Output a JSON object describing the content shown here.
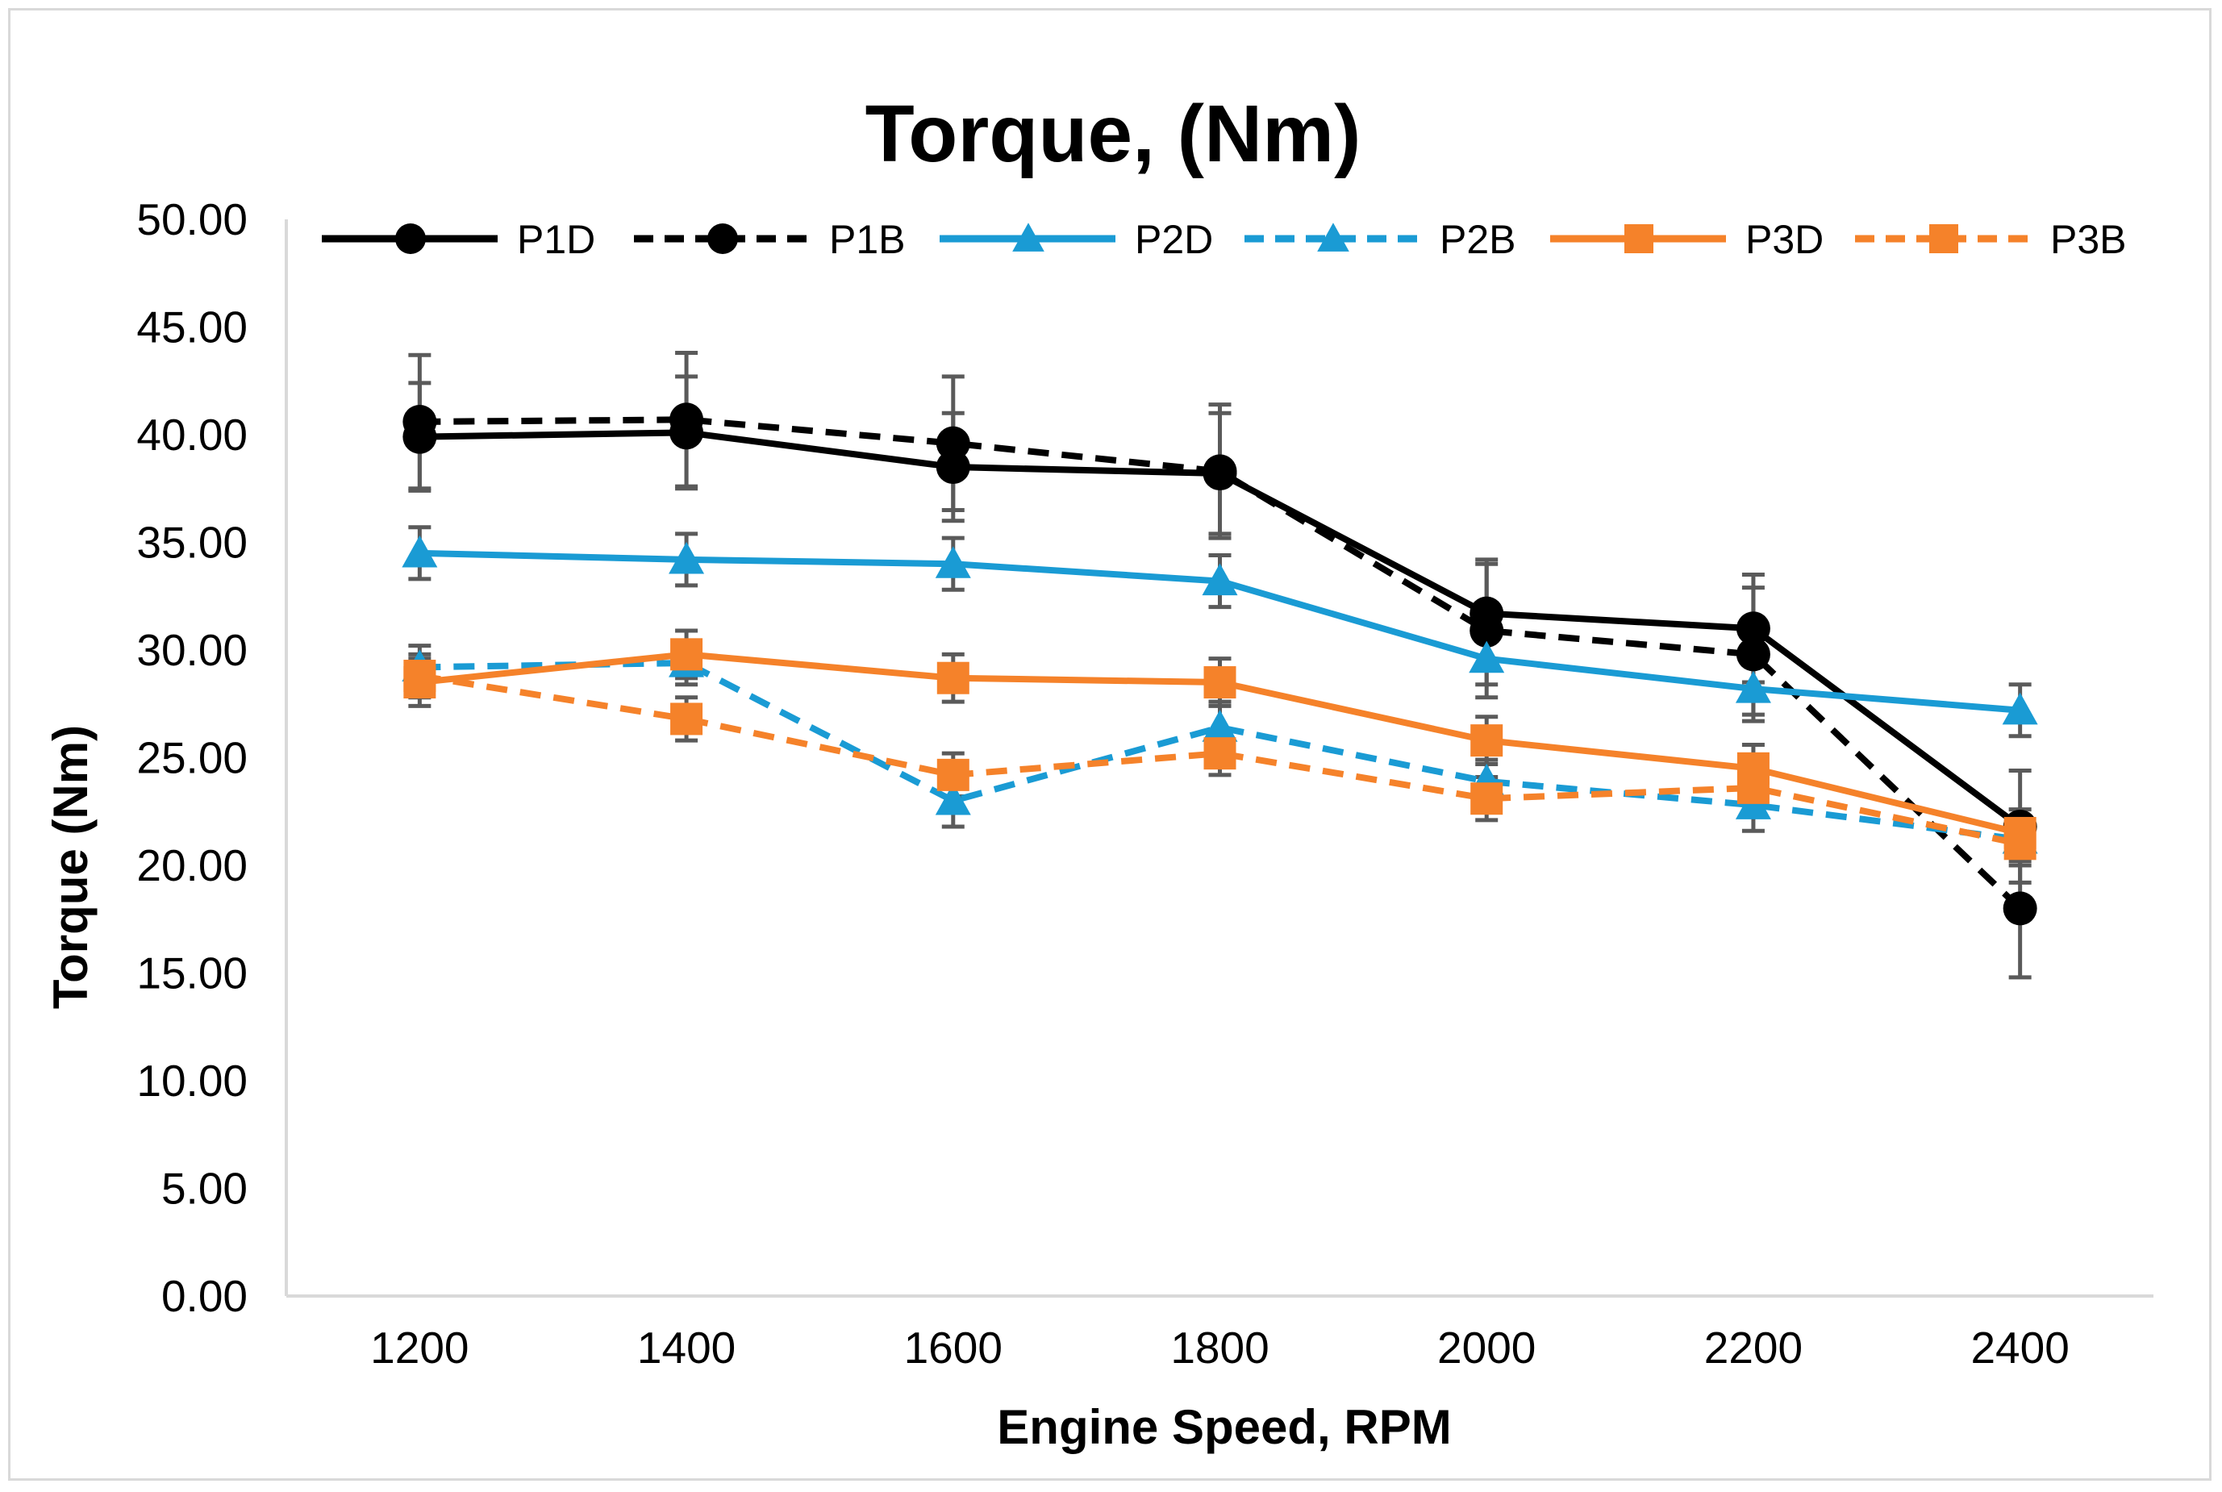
{
  "chart_data": {
    "type": "line",
    "title": "Torque, (Nm)",
    "xlabel": "Engine Speed, RPM",
    "ylabel": "Torque (Nm)",
    "categories": [
      "1200",
      "1400",
      "1600",
      "1800",
      "2000",
      "2200",
      "2400"
    ],
    "ylim": [
      0,
      50
    ],
    "yticks": [
      "0.00",
      "5.00",
      "10.00",
      "15.00",
      "20.00",
      "25.00",
      "30.00",
      "35.00",
      "40.00",
      "45.00",
      "50.00"
    ],
    "grid": false,
    "legend_position": "top",
    "series": [
      {
        "name": "P1D",
        "color": "#000000",
        "dash": "solid",
        "marker": "circle",
        "values": [
          39.9,
          40.1,
          38.5,
          38.2,
          31.7,
          31.0,
          21.8
        ],
        "errors": [
          2.5,
          2.6,
          2.5,
          2.8,
          2.5,
          2.5,
          2.6
        ]
      },
      {
        "name": "P1B",
        "color": "#000000",
        "dash": "dashed",
        "marker": "circle",
        "values": [
          40.6,
          40.7,
          39.6,
          38.3,
          30.9,
          29.8,
          18.0
        ],
        "errors": [
          3.1,
          3.1,
          3.1,
          3.1,
          3.1,
          3.1,
          3.2
        ]
      },
      {
        "name": "P2D",
        "color": "#1a9bd4",
        "dash": "solid",
        "marker": "triangle",
        "values": [
          34.5,
          34.2,
          34.0,
          33.2,
          29.6,
          28.2,
          27.2
        ],
        "errors": [
          1.2,
          1.2,
          1.2,
          1.2,
          1.2,
          1.2,
          1.2
        ]
      },
      {
        "name": "P2B",
        "color": "#1a9bd4",
        "dash": "dashed",
        "marker": "triangle",
        "values": [
          29.2,
          29.4,
          23.0,
          26.4,
          23.9,
          22.8,
          21.2
        ],
        "errors": [
          1.0,
          1.0,
          1.2,
          1.2,
          1.0,
          1.2,
          1.0
        ]
      },
      {
        "name": "P3D",
        "color": "#f5822a",
        "dash": "solid",
        "marker": "square",
        "values": [
          28.5,
          29.8,
          28.7,
          28.5,
          25.8,
          24.5,
          21.5
        ],
        "errors": [
          1.1,
          1.1,
          1.1,
          1.1,
          1.1,
          1.1,
          1.1
        ]
      },
      {
        "name": "P3B",
        "color": "#f5822a",
        "dash": "dashed",
        "marker": "square",
        "values": [
          28.8,
          26.8,
          24.2,
          25.2,
          23.1,
          23.6,
          21.0
        ],
        "errors": [
          1.0,
          1.0,
          1.0,
          1.0,
          1.0,
          1.0,
          1.0
        ]
      }
    ]
  }
}
